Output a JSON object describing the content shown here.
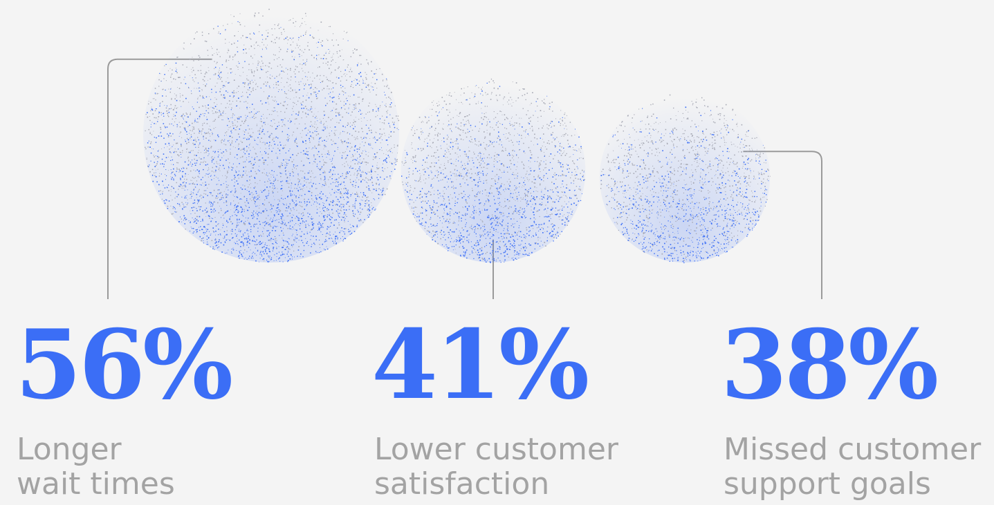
{
  "colors": {
    "background": "#f4f4f4",
    "accent": "#3b6ef6",
    "speckle_light": "#a7a9b4",
    "label": "#a3a3a3",
    "connector": "#9a9a9a"
  },
  "chart_data": {
    "type": "bubble",
    "value_unit": "%",
    "items": [
      {
        "value": 56,
        "display": "56%",
        "label_lines": [
          "Longer",
          "wait times"
        ]
      },
      {
        "value": 41,
        "display": "41%",
        "label_lines": [
          "Lower customer",
          "satisfaction"
        ]
      },
      {
        "value": 38,
        "display": "38%",
        "label_lines": [
          "Missed customer",
          "support goals"
        ]
      }
    ]
  }
}
